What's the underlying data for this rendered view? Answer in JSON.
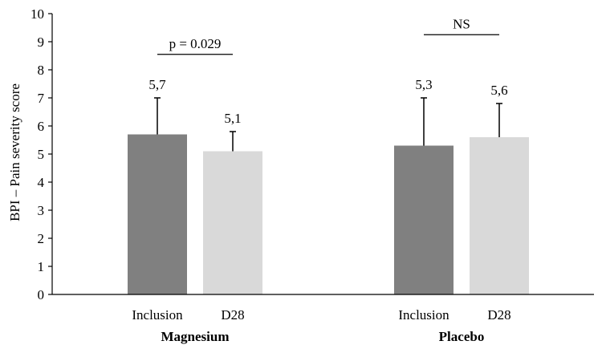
{
  "chart_data": {
    "type": "bar",
    "ylabel": "BPI – Pain severity score",
    "ylim": [
      0,
      10
    ],
    "yticks": [
      0,
      1,
      2,
      3,
      4,
      5,
      6,
      7,
      8,
      9,
      10
    ],
    "grid": false,
    "legend": "none",
    "groups": [
      {
        "name": "Magnesium",
        "bars": [
          {
            "label": "Inclusion",
            "value": 5.7,
            "error_upper": 7.0,
            "data_label": "5,7",
            "color": "#808080"
          },
          {
            "label": "D28",
            "value": 5.1,
            "error_upper": 5.8,
            "data_label": "5,1",
            "color": "#d9d9d9"
          }
        ],
        "comparison": {
          "text": "p = 0.029",
          "bracket_y": 8.55
        }
      },
      {
        "name": "Placebo",
        "bars": [
          {
            "label": "Inclusion",
            "value": 5.3,
            "error_upper": 7.0,
            "data_label": "5,3",
            "color": "#808080"
          },
          {
            "label": "D28",
            "value": 5.6,
            "error_upper": 6.8,
            "data_label": "5,6",
            "color": "#d9d9d9"
          }
        ],
        "comparison": {
          "text": "NS",
          "bracket_y": 9.25
        }
      }
    ]
  }
}
